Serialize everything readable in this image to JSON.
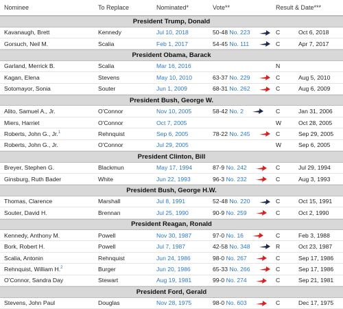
{
  "headers": [
    "Nominee",
    "To Replace",
    "Nominated*",
    "Vote**",
    "Result & Date***"
  ],
  "groups": [
    {
      "title": "President Trump, Donald",
      "rows": [
        {
          "nominee": "Kavanaugh, Brett",
          "replace": "Kennedy",
          "nominated": "Jul 10, 2018",
          "vote": "50-48",
          "no": "No. 223",
          "result": "C",
          "date": "Oct 6, 2018",
          "arrow": "navy"
        },
        {
          "nominee": "Gorsuch, Neil M.",
          "replace": "Scalia",
          "nominated": "Feb 1, 2017",
          "vote": "54-45",
          "no": "No. 111",
          "result": "C",
          "date": "Apr 7, 2017",
          "arrow": "navy"
        }
      ]
    },
    {
      "title": "President Obama, Barack",
      "rows": [
        {
          "nominee": "Garland, Merrick B.",
          "replace": "Scalia",
          "nominated": "Mar 16, 2016",
          "vote": "",
          "no": "",
          "result": "N",
          "date": "",
          "arrow": ""
        },
        {
          "nominee": "Kagan, Elena",
          "replace": "Stevens",
          "nominated": "May 10, 2010",
          "vote": "63-37",
          "no": "No. 229",
          "result": "C",
          "date": "Aug 5, 2010",
          "arrow": "red"
        },
        {
          "nominee": "Sotomayor, Sonia",
          "replace": "Souter",
          "nominated": "Jun 1, 2009",
          "vote": "68-31",
          "no": "No. 262",
          "result": "C",
          "date": "Aug 6, 2009",
          "arrow": "red"
        }
      ]
    },
    {
      "title": "President Bush, George W.",
      "rows": [
        {
          "nominee": "Alito, Samuel A., Jr.",
          "replace": "O'Connor",
          "nominated": "Nov 10, 2005",
          "vote": "58-42",
          "no": "No. 2",
          "result": "C",
          "date": "Jan 31, 2006",
          "arrow": "navy"
        },
        {
          "nominee": "Miers, Harriet",
          "replace": "O'Connor",
          "nominated": "Oct 7, 2005",
          "vote": "",
          "no": "",
          "result": "W",
          "date": "Oct 28, 2005",
          "arrow": ""
        },
        {
          "nominee": "Roberts, John G., Jr.",
          "sup": "1",
          "replace": "Rehnquist",
          "nominated": "Sep 6, 2005",
          "vote": "78-22",
          "no": "No. 245",
          "result": "C",
          "date": "Sep 29, 2005",
          "arrow": "red"
        },
        {
          "nominee": "Roberts, John G., Jr.",
          "replace": "O'Connor",
          "nominated": "Jul 29, 2005",
          "vote": "",
          "no": "",
          "result": "W",
          "date": "Sep 6, 2005",
          "arrow": ""
        }
      ]
    },
    {
      "title": "President Clinton, Bill",
      "rows": [
        {
          "nominee": "Breyer, Stephen G.",
          "replace": "Blackmun",
          "nominated": "May 17, 1994",
          "vote": "87-9",
          "no": "No. 242",
          "result": "C",
          "date": "Jul 29, 1994",
          "arrow": "red"
        },
        {
          "nominee": "Ginsburg, Ruth Bader",
          "replace": "White",
          "nominated": "Jun 22, 1993",
          "vote": "96-3",
          "no": "No. 232",
          "result": "C",
          "date": "Aug 3, 1993",
          "arrow": "red"
        }
      ]
    },
    {
      "title": "President Bush, George H.W.",
      "rows": [
        {
          "nominee": "Thomas, Clarence",
          "replace": "Marshall",
          "nominated": "Jul 8, 1991",
          "vote": "52-48",
          "no": "No. 220",
          "result": "C",
          "date": "Oct 15, 1991",
          "arrow": "navy"
        },
        {
          "nominee": "Souter, David H.",
          "replace": "Brennan",
          "nominated": "Jul 25, 1990",
          "vote": "90-9",
          "no": "No. 259",
          "result": "C",
          "date": "Oct 2, 1990",
          "arrow": "red"
        }
      ]
    },
    {
      "title": "President Reagan, Ronald",
      "rows": [
        {
          "nominee": "Kennedy, Anthony M.",
          "replace": "Powell",
          "nominated": "Nov 30, 1987",
          "vote": "97-0",
          "no": "No. 16",
          "result": "C",
          "date": "Feb 3, 1988",
          "arrow": "red"
        },
        {
          "nominee": "Bork, Robert H.",
          "replace": "Powell",
          "nominated": "Jul 7, 1987",
          "vote": "42-58",
          "no": "No. 348",
          "result": "R",
          "date": "Oct 23, 1987",
          "arrow": "navy"
        },
        {
          "nominee": "Scalia, Antonin",
          "replace": "Rehnquist",
          "nominated": "Jun 24, 1986",
          "vote": "98-0",
          "no": "No. 267",
          "result": "C",
          "date": "Sep 17, 1986",
          "arrow": "red"
        },
        {
          "nominee": "Rehnquist, William H.",
          "sup": "2",
          "replace": "Burger",
          "nominated": "Jun 20, 1986",
          "vote": "65-33",
          "no": "No. 266",
          "result": "C",
          "date": "Sep 17, 1986",
          "arrow": "red"
        },
        {
          "nominee": "O'Connor, Sandra Day",
          "replace": "Stewart",
          "nominated": "Aug 19, 1981",
          "vote": "99-0",
          "no": "No. 274",
          "result": "C",
          "date": "Sep 21, 1981",
          "arrow": "red"
        }
      ]
    },
    {
      "title": "President Ford, Gerald",
      "rows": [
        {
          "nominee": "Stevens, John Paul",
          "replace": "Douglas",
          "nominated": "Nov 28, 1975",
          "vote": "98-0",
          "no": "No. 603",
          "result": "C",
          "date": "Dec 17, 1975",
          "arrow": "red"
        }
      ]
    }
  ],
  "colors": {
    "link": "#2b78c5",
    "group_bg": "#d8d8d8",
    "arrow_red": "#d62222",
    "arrow_navy": "#1e2b4f"
  }
}
